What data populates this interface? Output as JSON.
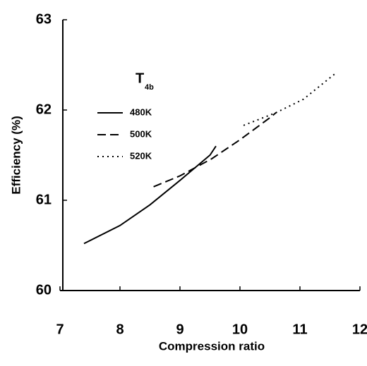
{
  "chart_data": {
    "type": "line",
    "xlabel": "Compression ratio",
    "ylabel": "Efficiency (%)",
    "legend_title": "T",
    "legend_title_subscript": "4b",
    "xlim": [
      7,
      12
    ],
    "xticks": [
      7,
      8,
      9,
      10,
      11,
      12
    ],
    "ylim": [
      60,
      63
    ],
    "yticks": [
      60,
      61,
      62,
      63
    ],
    "series": [
      {
        "name": "480K",
        "color": "#000000",
        "dash": "solid",
        "x": [
          7.4,
          8,
          8.5,
          9,
          9.5,
          9.6
        ],
        "values": [
          60.52,
          60.72,
          60.95,
          61.22,
          61.5,
          61.6
        ]
      },
      {
        "name": "500K",
        "color": "#000000",
        "dash": "dashed",
        "x": [
          8.56,
          9,
          9.53,
          10,
          10.53,
          10.6
        ],
        "values": [
          61.15,
          61.27,
          61.46,
          61.67,
          61.93,
          61.97
        ]
      },
      {
        "name": "520K",
        "color": "#000000",
        "dash": "dotted",
        "x": [
          10.06,
          10.6,
          11.06,
          11.6
        ],
        "values": [
          61.83,
          61.97,
          62.12,
          62.41
        ]
      }
    ]
  }
}
